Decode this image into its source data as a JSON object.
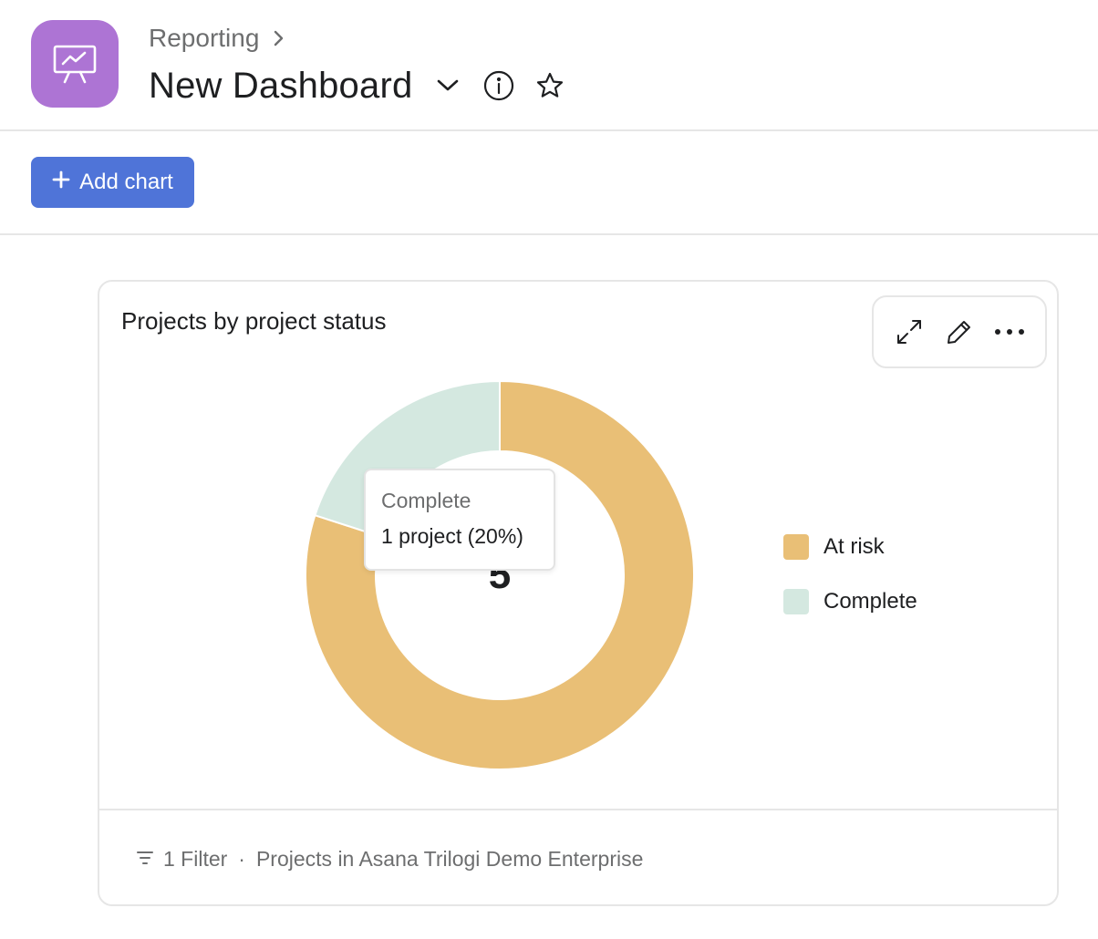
{
  "header": {
    "breadcrumb": "Reporting",
    "title": "New Dashboard"
  },
  "toolbar": {
    "add_chart_label": "Add chart"
  },
  "card": {
    "title": "Projects by project status",
    "footer": {
      "filter_label": "1 Filter",
      "separator": "·",
      "scope": "Projects in Asana Trilogi Demo Enterprise"
    }
  },
  "tooltip": {
    "title": "Complete",
    "value": "1 project (20%)"
  },
  "chart_data": {
    "type": "pie",
    "variant": "donut",
    "title": "Projects by project status",
    "center_label": "5",
    "slices": [
      {
        "label": "At risk",
        "value": 4,
        "color": "#e9bf76"
      },
      {
        "label": "Complete",
        "value": 1,
        "color": "#d4e8e0"
      }
    ],
    "legend_position": "right"
  },
  "colors": {
    "accent": "#4f74d8",
    "app_icon": "#ad74d4"
  },
  "icons": {
    "app": "presentation-chart-icon",
    "breadcrumb_chevron": "chevron-right-icon",
    "title_dropdown": "chevron-down-icon",
    "info": "info-icon",
    "favorite": "star-icon",
    "add": "plus-icon",
    "expand": "expand-icon",
    "edit": "pencil-icon",
    "more": "more-icon",
    "filter": "filter-icon"
  }
}
